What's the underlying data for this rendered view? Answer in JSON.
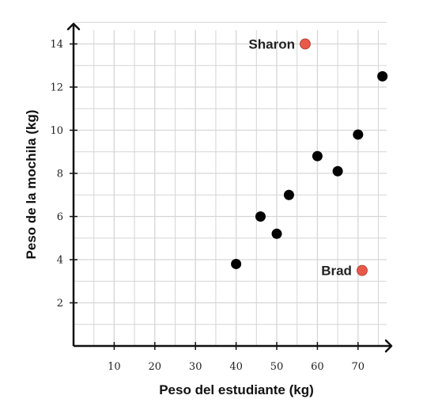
{
  "chart_data": {
    "type": "scatter",
    "xlabel": "Peso del estudiante (kg)",
    "ylabel": "Peso de la mochila (kg)",
    "xlim": [
      0,
      78
    ],
    "ylim": [
      0,
      15
    ],
    "x_ticks": [
      10,
      20,
      30,
      40,
      50,
      60,
      70
    ],
    "y_ticks": [
      2,
      4,
      6,
      8,
      10,
      12,
      14
    ],
    "grid": true,
    "points": [
      {
        "x": 40,
        "y": 3.8
      },
      {
        "x": 46,
        "y": 6.0
      },
      {
        "x": 50,
        "y": 5.2
      },
      {
        "x": 53,
        "y": 7.0
      },
      {
        "x": 60,
        "y": 8.8
      },
      {
        "x": 65,
        "y": 8.1
      },
      {
        "x": 70,
        "y": 9.8
      },
      {
        "x": 76,
        "y": 12.5
      }
    ],
    "highlighted_points": [
      {
        "label": "Sharon",
        "x": 57,
        "y": 14.0
      },
      {
        "label": "Brad",
        "x": 71,
        "y": 3.5
      }
    ],
    "colors": {
      "points": "#000000",
      "highlight": "#e8594a",
      "grid": "#d6d6d6",
      "axes": "#111111"
    }
  }
}
